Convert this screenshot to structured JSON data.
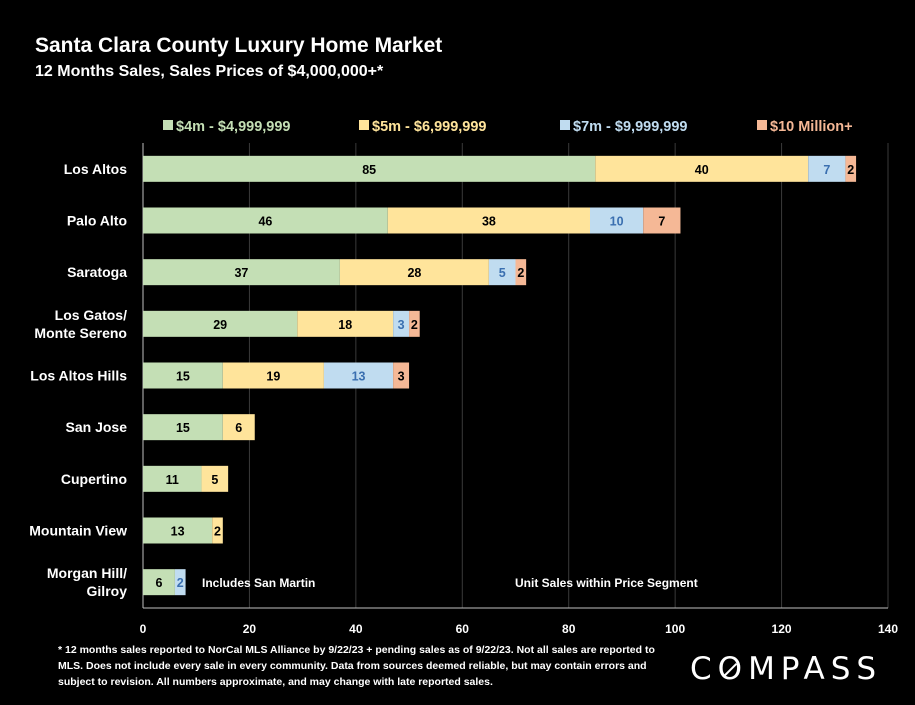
{
  "header": {
    "title": "Santa Clara County Luxury Home Market",
    "subtitle": "12 Months Sales, Sales Prices of $4,000,000+*"
  },
  "chart_data": {
    "type": "bar",
    "orientation": "horizontal",
    "stacked": true,
    "categories": [
      [
        "Los Altos"
      ],
      [
        "Palo Alto"
      ],
      [
        "Saratoga"
      ],
      [
        "Los Gatos/",
        "Monte Sereno"
      ],
      [
        "Los Altos Hills"
      ],
      [
        "San Jose"
      ],
      [
        "Cupertino"
      ],
      [
        "Mountain View"
      ],
      [
        "Morgan Hill/",
        "Gilroy"
      ]
    ],
    "series": [
      {
        "name": "$4m - $4,999,999",
        "color": "#c4dfb5",
        "label_color": "#000000",
        "values": [
          85,
          46,
          37,
          29,
          15,
          15,
          11,
          13,
          6
        ]
      },
      {
        "name": "$5m - $6,999,999",
        "color": "#ffe49b",
        "label_color": "#000000",
        "values": [
          40,
          38,
          28,
          18,
          19,
          6,
          5,
          2,
          0
        ]
      },
      {
        "name": "$7m - $9,999,999",
        "color": "#c0dcf0",
        "label_color": "#3a6fb0",
        "values": [
          7,
          10,
          5,
          3,
          13,
          0,
          0,
          0,
          2
        ]
      },
      {
        "name": "$10 Million+",
        "color": "#f5b896",
        "label_color": "#000000",
        "values": [
          2,
          7,
          2,
          2,
          3,
          0,
          0,
          0,
          0
        ]
      }
    ],
    "legend_colors": [
      "#c4dfb5",
      "#ffe49b",
      "#c0dcf0",
      "#f5b896"
    ],
    "xlim": [
      0,
      140
    ],
    "xticks": [
      0,
      20,
      40,
      60,
      80,
      100,
      120,
      140
    ],
    "grid": true,
    "legend_position": "top",
    "annotations": [
      "Includes San Martin",
      "Unit Sales within Price Segment"
    ]
  },
  "footnote": "* 12 months sales reported to NorCal MLS Alliance by 9/22/23 + pending sales as of 9/22/23. Not all sales are reported to MLS. Does not include every sale in every community. Data from  sources deemed reliable, but may contain errors and subject to revision. All numbers approximate, and may change with late reported sales.",
  "logo": {
    "parts": [
      "C",
      "O",
      "MPASS"
    ]
  }
}
